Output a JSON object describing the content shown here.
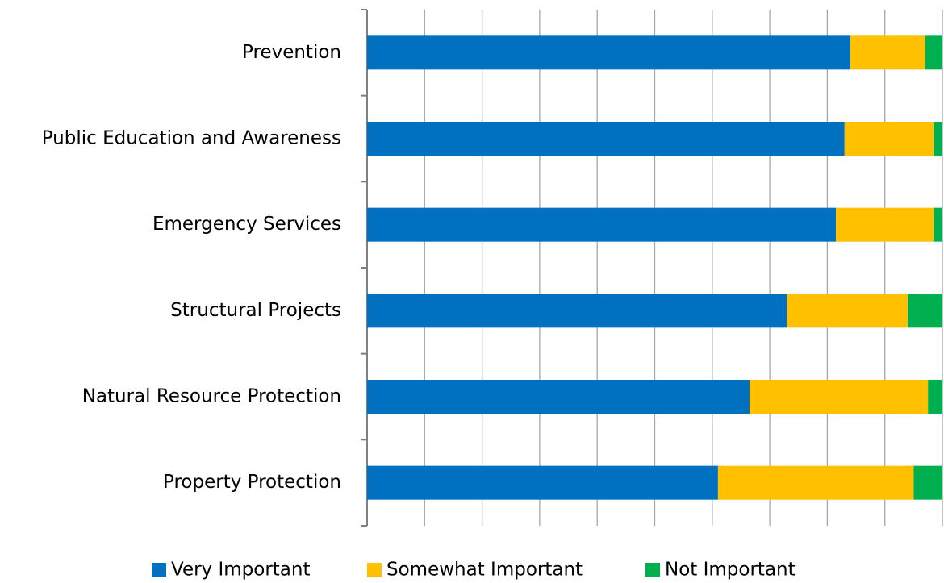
{
  "chart_data": {
    "type": "stacked-bar-horizontal",
    "categories": [
      "Prevention",
      "Public Education and Awareness",
      "Emergency Services",
      "Structural Projects",
      "Natural Resource Protection",
      "Property Protection"
    ],
    "series": [
      {
        "name": "Very Important",
        "color": "#0070c0",
        "values": [
          84,
          83,
          81.5,
          73,
          66.5,
          61
        ]
      },
      {
        "name": "Somewhat Important",
        "color": "#ffc000",
        "values": [
          13,
          15.5,
          17,
          21,
          31,
          34
        ]
      },
      {
        "name": "Not Important",
        "color": "#00b050",
        "values": [
          3,
          1.5,
          1.5,
          6,
          2.5,
          5
        ]
      }
    ],
    "xlim": [
      0,
      100
    ],
    "xticks": [
      0,
      10,
      20,
      30,
      40,
      50,
      60,
      70,
      80,
      90,
      100
    ],
    "grid": true,
    "legend": "bottom"
  }
}
